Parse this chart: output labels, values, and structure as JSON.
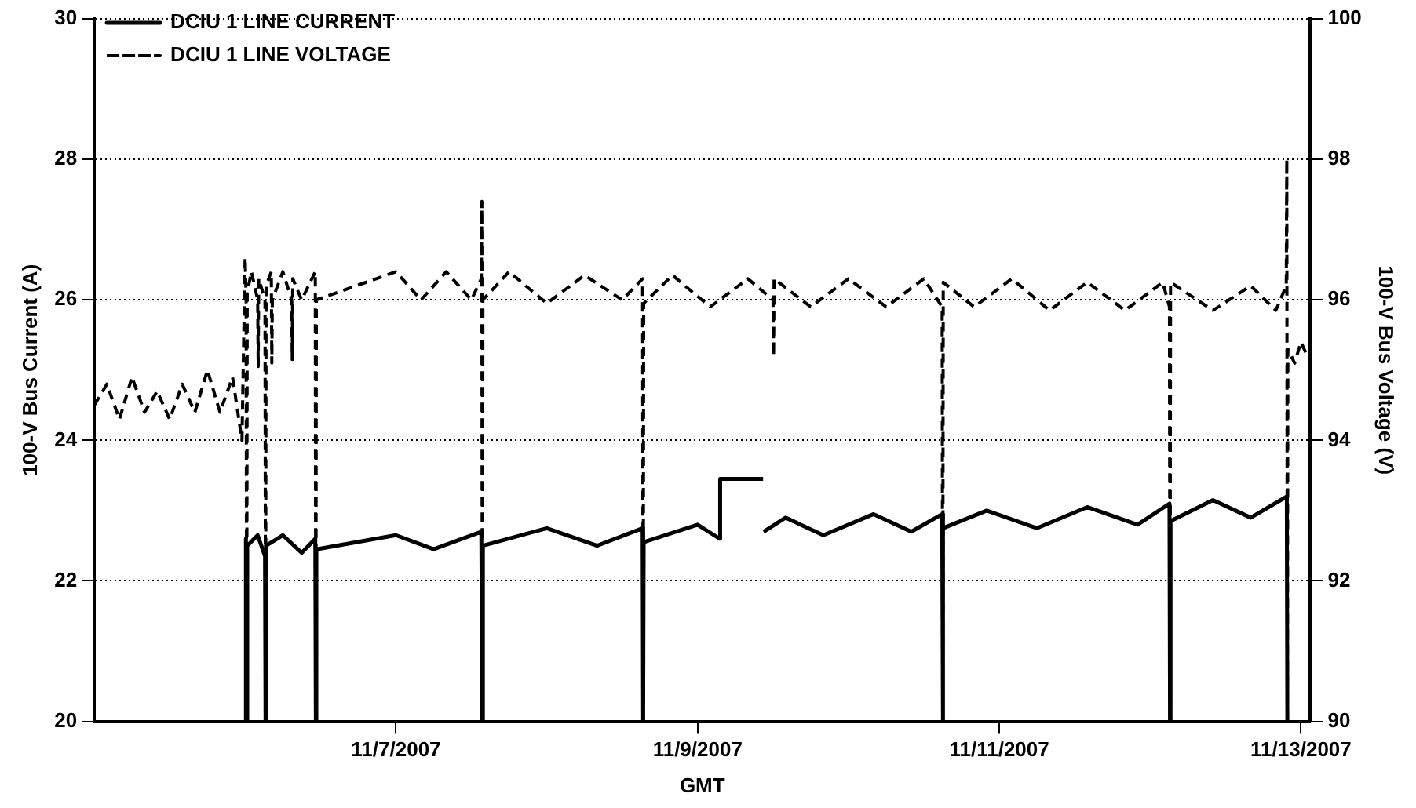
{
  "chart_data": {
    "type": "line",
    "xlabel": "GMT",
    "ylabel": "100-V Bus Current (A)",
    "y2label": "100-V Bus Voltage (V)",
    "xlim": [
      "2007-11-05",
      "2007-11-13T01:30"
    ],
    "xticks": [
      {
        "value": "2007-11-07",
        "label": "11/7/2007"
      },
      {
        "value": "2007-11-09",
        "label": "11/9/2007"
      },
      {
        "value": "2007-11-11",
        "label": "11/11/2007"
      },
      {
        "value": "2007-11-13",
        "label": "11/13/2007"
      }
    ],
    "ylim": [
      20,
      30
    ],
    "yticks": [
      20,
      22,
      24,
      26,
      28,
      30
    ],
    "y2lim": [
      90,
      100
    ],
    "y2ticks": [
      90,
      92,
      94,
      96,
      98,
      100
    ],
    "grid": "y",
    "legend": "top left",
    "marker": "none",
    "series": [
      {
        "name": "DCIU 1 LINE CURRENT",
        "color": "#000000",
        "line_style": "solid",
        "axis": "y",
        "x": [
          "2007-11-06T00:00",
          "2007-11-06T00:05",
          "2007-11-06T00:10",
          "2007-11-06T00:15",
          "2007-11-06T00:20",
          "2007-11-06T02:00",
          "2007-11-06T03:10",
          "2007-11-06T03:15",
          "2007-11-06T03:20",
          "2007-11-06T06:00",
          "2007-11-06T09:00",
          "2007-11-06T11:10",
          "2007-11-06T11:15",
          "2007-11-06T11:20",
          "2007-11-07T00:00",
          "2007-11-07T06:00",
          "2007-11-07T13:35",
          "2007-11-07T13:45",
          "2007-11-07T13:50",
          "2007-11-08T00:00",
          "2007-11-08T08:00",
          "2007-11-08T15:15",
          "2007-11-08T15:20",
          "2007-11-08T15:25",
          "2007-11-09T00:00",
          "2007-11-09T03:30",
          "2007-11-09T03:35",
          "2007-11-09T10:25",
          "2007-11-09T10:27",
          "2007-11-09T10:30",
          "2007-11-09T14:00",
          "2007-11-09T20:00",
          "2007-11-10T04:00",
          "2007-11-10T10:00",
          "2007-11-10T14:55",
          "2007-11-10T15:00",
          "2007-11-10T15:05",
          "2007-11-10T22:00",
          "2007-11-11T06:00",
          "2007-11-11T14:00",
          "2007-11-11T22:00",
          "2007-11-12T03:05",
          "2007-11-12T03:10",
          "2007-11-12T03:15",
          "2007-11-12T10:00",
          "2007-11-12T16:00",
          "2007-11-12T21:45",
          "2007-11-12T21:50"
        ],
        "values": [
          20,
          22.6,
          22.4,
          20,
          22.5,
          22.65,
          22.35,
          20,
          22.5,
          22.65,
          22.4,
          22.6,
          20,
          22.45,
          22.65,
          22.45,
          22.7,
          20,
          22.5,
          22.75,
          22.5,
          22.75,
          20,
          22.55,
          22.8,
          22.6,
          23.45,
          23.45,
          null,
          22.7,
          22.9,
          22.65,
          22.95,
          22.7,
          22.95,
          20,
          22.75,
          23.0,
          22.75,
          23.05,
          22.8,
          23.1,
          20,
          22.85,
          23.15,
          22.9,
          23.2,
          20
        ]
      },
      {
        "name": "DCIU 1 LINE VOLTAGE",
        "color": "#000000",
        "line_style": "dashed",
        "axis": "y2",
        "x": [
          "2007-11-05T00:00",
          "2007-11-05T02:00",
          "2007-11-05T04:00",
          "2007-11-05T06:00",
          "2007-11-05T08:00",
          "2007-11-05T10:00",
          "2007-11-05T12:00",
          "2007-11-05T14:00",
          "2007-11-05T16:00",
          "2007-11-05T18:00",
          "2007-11-05T20:00",
          "2007-11-05T22:00",
          "2007-11-05T23:00",
          "2007-11-05T23:30",
          "2007-11-06T00:00",
          "2007-11-06T00:10",
          "2007-11-06T00:15",
          "2007-11-06T00:20",
          "2007-11-06T01:00",
          "2007-11-06T02:00",
          "2007-11-06T02:05",
          "2007-11-06T02:10",
          "2007-11-06T03:10",
          "2007-11-06T03:15",
          "2007-11-06T03:20",
          "2007-11-06T04:10",
          "2007-11-06T04:15",
          "2007-11-06T04:20",
          "2007-11-06T06:00",
          "2007-11-06T07:25",
          "2007-11-06T07:30",
          "2007-11-06T07:35",
          "2007-11-06T09:00",
          "2007-11-06T11:10",
          "2007-11-06T11:15",
          "2007-11-06T11:20",
          "2007-11-07T00:00",
          "2007-11-07T04:00",
          "2007-11-07T08:00",
          "2007-11-07T12:00",
          "2007-11-07T13:35",
          "2007-11-07T13:40",
          "2007-11-07T13:45",
          "2007-11-07T13:50",
          "2007-11-07T18:00",
          "2007-11-08T00:00",
          "2007-11-08T06:00",
          "2007-11-08T12:00",
          "2007-11-08T15:15",
          "2007-11-08T15:20",
          "2007-11-08T15:25",
          "2007-11-08T20:00",
          "2007-11-09T02:00",
          "2007-11-09T08:00",
          "2007-11-09T12:00",
          "2007-11-09T12:05",
          "2007-11-09T12:10",
          "2007-11-09T18:00",
          "2007-11-10T00:00",
          "2007-11-10T06:00",
          "2007-11-10T12:00",
          "2007-11-10T14:55",
          "2007-11-10T15:00",
          "2007-11-10T15:05",
          "2007-11-10T20:00",
          "2007-11-11T02:00",
          "2007-11-11T08:00",
          "2007-11-11T14:00",
          "2007-11-11T20:00",
          "2007-11-12T02:00",
          "2007-11-12T03:05",
          "2007-11-12T03:10",
          "2007-11-12T03:15",
          "2007-11-12T10:00",
          "2007-11-12T16:00",
          "2007-11-12T20:00",
          "2007-11-12T21:40",
          "2007-11-12T21:45",
          "2007-11-12T21:50",
          "2007-11-12T21:55",
          "2007-11-12T23:00",
          "2007-11-13T00:00",
          "2007-11-13T01:00"
        ],
        "values": [
          94.5,
          94.8,
          94.3,
          94.9,
          94.4,
          94.7,
          94.3,
          94.8,
          94.4,
          95.0,
          94.4,
          94.9,
          94.3,
          94.0,
          96.6,
          96.0,
          90,
          96.1,
          96.4,
          96.0,
          95.05,
          96.3,
          96.0,
          90,
          96.2,
          96.4,
          95.1,
          96.0,
          96.4,
          96.0,
          95.15,
          96.3,
          96.0,
          96.4,
          90,
          96.0,
          96.4,
          96.0,
          96.4,
          96.0,
          96.3,
          97.4,
          90,
          96.0,
          96.4,
          95.95,
          96.35,
          96.0,
          96.3,
          90,
          95.95,
          96.35,
          95.9,
          96.3,
          96.0,
          95.2,
          96.3,
          95.9,
          96.3,
          95.9,
          96.3,
          95.9,
          90,
          96.25,
          95.9,
          96.3,
          95.85,
          96.25,
          95.85,
          96.25,
          95.9,
          90,
          96.25,
          95.85,
          96.2,
          95.85,
          96.2,
          98.0,
          90,
          95.3,
          95.1,
          95.4,
          95.2
        ]
      }
    ]
  }
}
